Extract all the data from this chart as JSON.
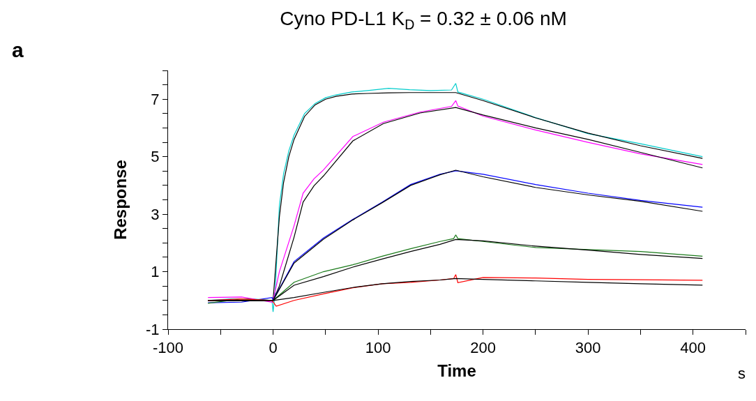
{
  "chart_data": {
    "type": "line",
    "title": "Cyno PD-L1 K$_{D}$ = 0.32 ± 0.06 nM",
    "xlabel": "Time",
    "ylabel": "Response",
    "annotations": [
      "a",
      "s"
    ],
    "xlim": [
      -100,
      450
    ],
    "ylim": [
      -1,
      8
    ],
    "xticks": [
      -100,
      {
        "value": -50,
        "label": null
      },
      0,
      {
        "value": 50,
        "label": null
      },
      100,
      {
        "value": 150,
        "label": null
      },
      200,
      {
        "value": 250,
        "label": null
      },
      300,
      {
        "value": 350,
        "label": null
      },
      400,
      {
        "value": 450,
        "label": null
      }
    ],
    "yticks": [
      -1,
      {
        "value": -0.5,
        "label": null
      },
      {
        "value": 0,
        "label": null
      },
      {
        "value": 0.5,
        "label": null
      },
      1,
      {
        "value": 1.5,
        "label": null
      },
      {
        "value": 2,
        "label": null
      },
      {
        "value": 2.5,
        "label": null
      },
      3,
      {
        "value": 3.5,
        "label": null
      },
      {
        "value": 4,
        "label": null
      },
      {
        "value": 4.5,
        "label": null
      },
      5,
      {
        "value": 5.5,
        "label": null
      },
      {
        "value": 6,
        "label": null
      },
      {
        "value": 6.5,
        "label": null
      },
      7,
      {
        "value": 7.5,
        "label": null
      },
      {
        "value": 8,
        "label": null
      }
    ],
    "marker": "none",
    "line_style": "solid",
    "series": [
      {
        "color": "#00cccc",
        "x": [
          -62,
          -40,
          -20,
          -1,
          0,
          2,
          6,
          10,
          15,
          20,
          30,
          40,
          50,
          60,
          75,
          90,
          110,
          130,
          150,
          170,
          174,
          176,
          200,
          250,
          300,
          350,
          409
        ],
        "values": [
          0,
          0.05,
          0.05,
          0,
          -0.4,
          0.3,
          3.3,
          4.4,
          5.2,
          5.75,
          6.5,
          6.85,
          7.05,
          7.15,
          7.25,
          7.3,
          7.38,
          7.33,
          7.3,
          7.32,
          7.55,
          7.25,
          7.0,
          6.36,
          5.8,
          5.45,
          5.0
        ]
      },
      {
        "color": "#000000",
        "x": [
          -62,
          0,
          6,
          10,
          15,
          20,
          30,
          40,
          50,
          60,
          75,
          90,
          110,
          130,
          150,
          174,
          200,
          250,
          300,
          350,
          409
        ],
        "values": [
          0,
          0,
          2.9,
          4.1,
          5.0,
          5.6,
          6.4,
          6.8,
          7.0,
          7.1,
          7.18,
          7.2,
          7.22,
          7.23,
          7.23,
          7.23,
          6.95,
          6.35,
          5.82,
          5.38,
          4.94
        ]
      },
      {
        "color": "#ff00ff",
        "x": [
          -62,
          -30,
          -1,
          0,
          6,
          20,
          28.6,
          39,
          48,
          76,
          105,
          140,
          170,
          174,
          176,
          200,
          250,
          300,
          350,
          409
        ],
        "values": [
          0.1,
          0.12,
          -0.06,
          0,
          1.0,
          2.6,
          3.73,
          4.23,
          4.54,
          5.7,
          6.2,
          6.55,
          6.75,
          6.95,
          6.76,
          6.41,
          5.93,
          5.5,
          5.1,
          4.73
        ]
      },
      {
        "color": "#000000",
        "x": [
          -62,
          0,
          6,
          20,
          28.6,
          39,
          48,
          76,
          105,
          140,
          174,
          200,
          250,
          300,
          350,
          409
        ],
        "values": [
          0,
          0,
          0.5,
          2.2,
          3.42,
          3.99,
          4.33,
          5.55,
          6.15,
          6.52,
          6.71,
          6.45,
          6.0,
          5.6,
          5.15,
          4.61
        ]
      },
      {
        "color": "#0000ff",
        "x": [
          -62,
          -30,
          -1,
          0,
          1,
          20,
          48,
          76,
          104,
          131,
          159,
          174,
          200,
          250,
          300,
          350,
          409
        ],
        "values": [
          -0.08,
          -0.06,
          0.1,
          0,
          0.07,
          1.35,
          2.17,
          2.82,
          3.42,
          4.03,
          4.39,
          4.51,
          4.39,
          4.03,
          3.73,
          3.48,
          3.24
        ]
      },
      {
        "color": "#000000",
        "x": [
          -62,
          0,
          20,
          48,
          76,
          104,
          131,
          159,
          174,
          200,
          250,
          300,
          350,
          409
        ],
        "values": [
          0,
          0,
          1.3,
          2.13,
          2.8,
          3.4,
          4.0,
          4.37,
          4.53,
          4.3,
          3.93,
          3.67,
          3.45,
          3.1
        ]
      },
      {
        "color": "#1a7a1a",
        "x": [
          -62,
          -30,
          -1,
          0,
          20,
          48,
          76,
          104,
          131,
          159,
          172,
          174,
          176,
          200,
          250,
          300,
          350,
          409
        ],
        "values": [
          -0.1,
          0.05,
          0,
          0,
          0.63,
          1.0,
          1.24,
          1.54,
          1.8,
          2.05,
          2.15,
          2.28,
          2.15,
          2.05,
          1.84,
          1.77,
          1.7,
          1.54
        ]
      },
      {
        "color": "#000000",
        "x": [
          -62,
          0,
          20,
          48,
          76,
          104,
          131,
          159,
          174,
          200,
          250,
          300,
          350,
          409
        ],
        "values": [
          0,
          0,
          0.53,
          0.83,
          1.16,
          1.44,
          1.7,
          1.95,
          2.12,
          2.07,
          1.89,
          1.75,
          1.6,
          1.46
        ]
      },
      {
        "color": "#ff0000",
        "x": [
          -62,
          -30,
          -1,
          0,
          3,
          20,
          48,
          76,
          104,
          131,
          159,
          172,
          174,
          176,
          200,
          250,
          300,
          350,
          409
        ],
        "values": [
          0,
          0.05,
          0,
          -0.05,
          -0.2,
          0.0,
          0.23,
          0.44,
          0.58,
          0.63,
          0.71,
          0.76,
          0.9,
          0.62,
          0.8,
          0.78,
          0.73,
          0.72,
          0.7
        ]
      },
      {
        "color": "#000000",
        "x": [
          -62,
          0,
          20,
          48,
          76,
          104,
          131,
          159,
          174,
          200,
          250,
          300,
          350,
          409
        ],
        "values": [
          0,
          0,
          0.1,
          0.28,
          0.45,
          0.58,
          0.66,
          0.71,
          0.76,
          0.73,
          0.68,
          0.63,
          0.58,
          0.53
        ]
      }
    ]
  }
}
